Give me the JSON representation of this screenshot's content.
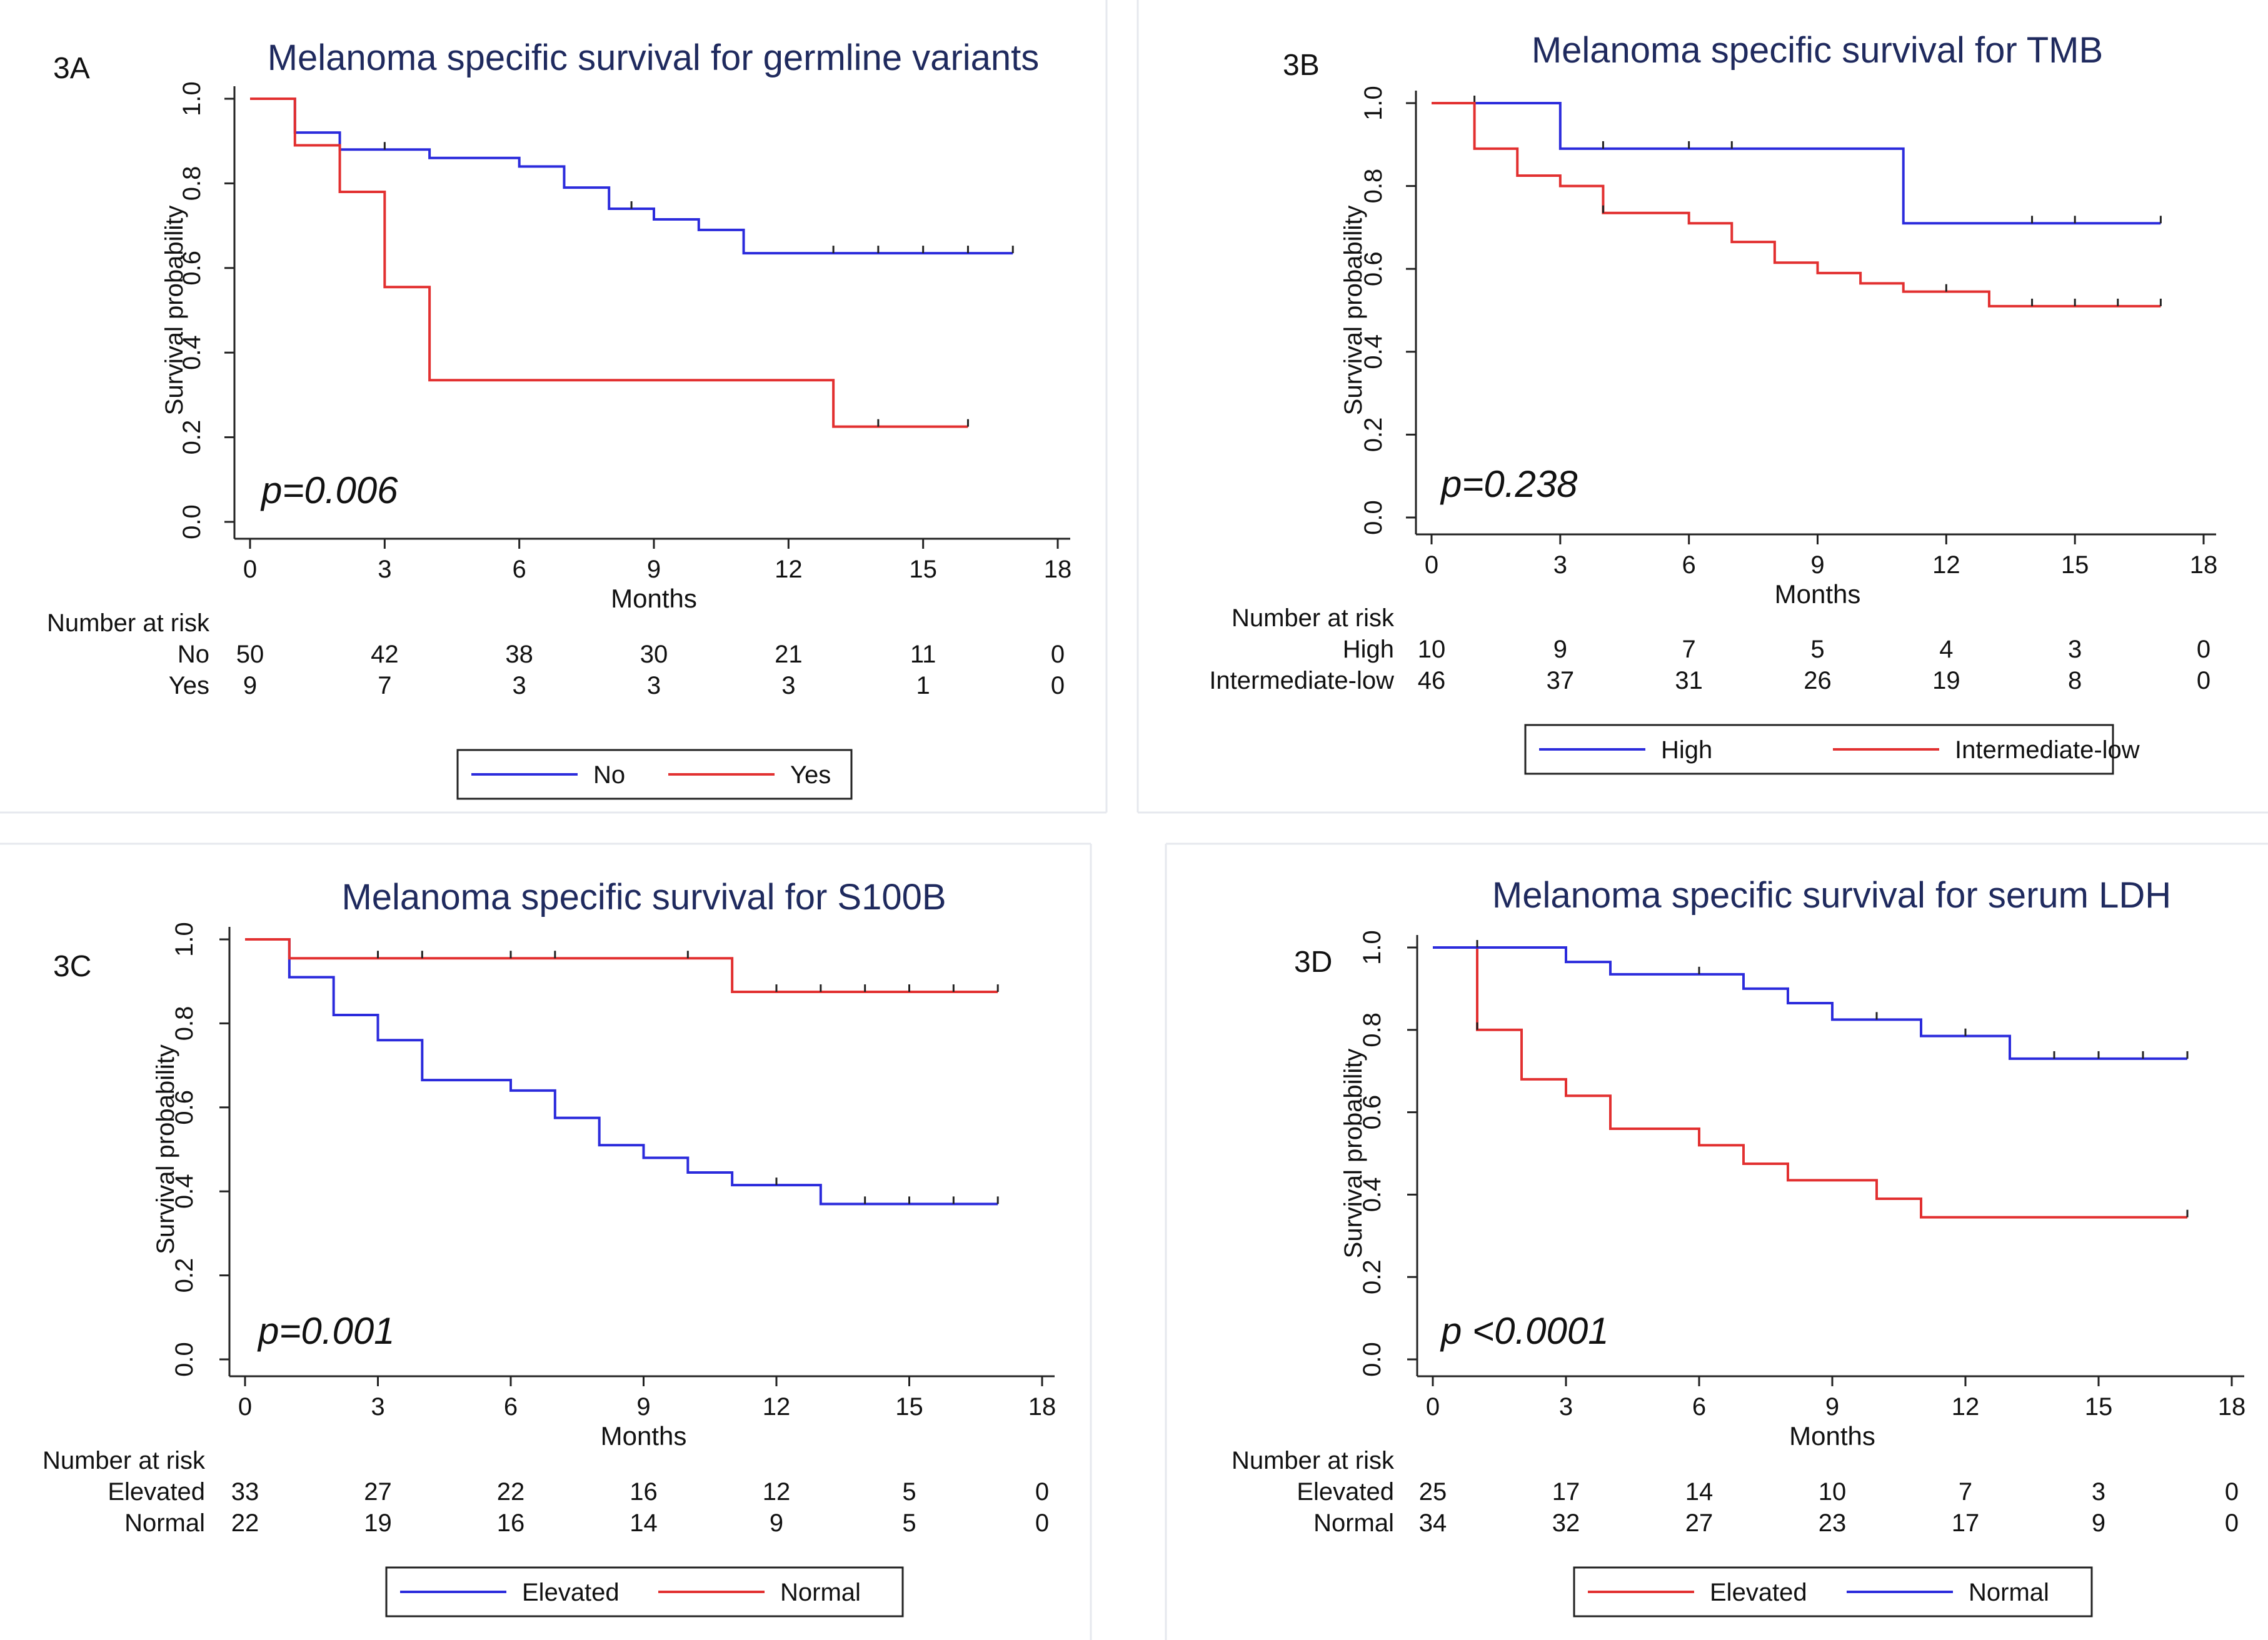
{
  "chart_data": [
    {
      "type": "line",
      "panel_label": "3A",
      "title": "Melanoma specific survival for germline variants",
      "xlabel": "Months",
      "ylabel": "Survival probability",
      "xlim": [
        0,
        18
      ],
      "ylim": [
        0,
        1
      ],
      "xticks": [
        "0",
        "3",
        "6",
        "9",
        "12",
        "15",
        "18"
      ],
      "yticks": [
        "0.0",
        "0.2",
        "0.4",
        "0.6",
        "0.8",
        "1.0"
      ],
      "p_value": "p=0.006",
      "risk_table_title": "Number at risk",
      "series": [
        {
          "name": "No",
          "color": "#2b2bdc",
          "steps": [
            [
              0,
              1.0
            ],
            [
              1,
              0.92
            ],
            [
              2,
              0.88
            ],
            [
              4,
              0.86
            ],
            [
              6,
              0.84
            ],
            [
              7,
              0.79
            ],
            [
              8,
              0.74
            ],
            [
              9,
              0.715
            ],
            [
              10,
              0.69
            ],
            [
              11,
              0.635
            ],
            [
              17,
              0.635
            ]
          ],
          "censor": [
            3,
            8.5,
            13,
            14,
            15,
            16,
            17
          ],
          "at_risk": [
            "50",
            "42",
            "38",
            "30",
            "21",
            "11",
            "0"
          ]
        },
        {
          "name": "Yes",
          "color": "#e23030",
          "steps": [
            [
              0,
              1.0
            ],
            [
              1,
              0.89
            ],
            [
              2,
              0.78
            ],
            [
              3,
              0.555
            ],
            [
              4,
              0.335
            ],
            [
              13,
              0.225
            ],
            [
              16,
              0.225
            ]
          ],
          "censor": [
            14,
            16
          ],
          "at_risk": [
            "9",
            "7",
            "3",
            "3",
            "3",
            "1",
            "0"
          ]
        }
      ],
      "legend": [
        "No",
        "Yes"
      ]
    },
    {
      "type": "line",
      "panel_label": "3B",
      "title": "Melanoma specific survival for TMB",
      "xlabel": "Months",
      "ylabel": "Survival probability",
      "xlim": [
        0,
        18
      ],
      "ylim": [
        0,
        1
      ],
      "xticks": [
        "0",
        "3",
        "6",
        "9",
        "12",
        "15",
        "18"
      ],
      "yticks": [
        "0.0",
        "0.2",
        "0.4",
        "0.6",
        "0.8",
        "1.0"
      ],
      "p_value": "p=0.238",
      "risk_table_title": "Number at risk",
      "series": [
        {
          "name": "High",
          "color": "#2b2bdc",
          "steps": [
            [
              0,
              1.0
            ],
            [
              3,
              0.89
            ],
            [
              11,
              0.71
            ],
            [
              17,
              0.71
            ]
          ],
          "censor": [
            1,
            4,
            6,
            7,
            14,
            15,
            17
          ],
          "at_risk": [
            "10",
            "9",
            "7",
            "5",
            "4",
            "3",
            "0"
          ]
        },
        {
          "name": "Intermediate-low",
          "color": "#e23030",
          "steps": [
            [
              0,
              1.0
            ],
            [
              1,
              0.89
            ],
            [
              2,
              0.825
            ],
            [
              3,
              0.8
            ],
            [
              4,
              0.735
            ],
            [
              6,
              0.71
            ],
            [
              7,
              0.665
            ],
            [
              8,
              0.615
            ],
            [
              9,
              0.59
            ],
            [
              10,
              0.565
            ],
            [
              11,
              0.545
            ],
            [
              13,
              0.51
            ],
            [
              17,
              0.51
            ]
          ],
          "censor": [
            4,
            12,
            14,
            15,
            16,
            17
          ],
          "at_risk": [
            "46",
            "37",
            "31",
            "26",
            "19",
            "8",
            "0"
          ]
        }
      ],
      "legend": [
        "High",
        "Intermediate-low"
      ]
    },
    {
      "type": "line",
      "panel_label": "3C",
      "title": "Melanoma specific survival for S100B",
      "xlabel": "Months",
      "ylabel": "Survival probability",
      "xlim": [
        0,
        18
      ],
      "ylim": [
        0,
        1
      ],
      "xticks": [
        "0",
        "3",
        "6",
        "9",
        "12",
        "15",
        "18"
      ],
      "yticks": [
        "0.0",
        "0.2",
        "0.4",
        "0.6",
        "0.8",
        "1.0"
      ],
      "p_value": "p=0.001",
      "risk_table_title": "Number at risk",
      "series": [
        {
          "name": "Elevated",
          "color": "#2b2bdc",
          "steps": [
            [
              0,
              1.0
            ],
            [
              1,
              0.91
            ],
            [
              2,
              0.82
            ],
            [
              3,
              0.76
            ],
            [
              4,
              0.665
            ],
            [
              6,
              0.64
            ],
            [
              7,
              0.575
            ],
            [
              8,
              0.51
            ],
            [
              9,
              0.48
            ],
            [
              10,
              0.445
            ],
            [
              11,
              0.415
            ],
            [
              13,
              0.37
            ],
            [
              17,
              0.37
            ]
          ],
          "censor": [
            12,
            14,
            15,
            16,
            17
          ],
          "at_risk": [
            "33",
            "27",
            "22",
            "16",
            "12",
            "5",
            "0"
          ]
        },
        {
          "name": "Normal",
          "color": "#e23030",
          "steps": [
            [
              0,
              1.0
            ],
            [
              1,
              0.955
            ],
            [
              11,
              0.875
            ],
            [
              17,
              0.875
            ]
          ],
          "censor": [
            3,
            4,
            6,
            7,
            10,
            12,
            13,
            14,
            15,
            16,
            17
          ],
          "at_risk": [
            "22",
            "19",
            "16",
            "14",
            "9",
            "5",
            "0"
          ]
        }
      ],
      "legend": [
        "Elevated",
        "Normal"
      ]
    },
    {
      "type": "line",
      "panel_label": "3D",
      "title": "Melanoma specific survival for serum LDH",
      "xlabel": "Months",
      "ylabel": "Survival probability",
      "xlim": [
        0,
        18
      ],
      "ylim": [
        0,
        1
      ],
      "xticks": [
        "0",
        "3",
        "6",
        "9",
        "12",
        "15",
        "18"
      ],
      "yticks": [
        "0.0",
        "0.2",
        "0.4",
        "0.6",
        "0.8",
        "1.0"
      ],
      "p_value": "p <0.0001",
      "risk_table_title": "Number at risk",
      "series": [
        {
          "name": "Elevated",
          "color": "#e23030",
          "steps": [
            [
              0,
              1.0
            ],
            [
              1,
              0.8
            ],
            [
              2,
              0.68
            ],
            [
              3,
              0.64
            ],
            [
              4,
              0.56
            ],
            [
              6,
              0.52
            ],
            [
              7,
              0.475
            ],
            [
              8,
              0.435
            ],
            [
              10,
              0.39
            ],
            [
              11,
              0.345
            ],
            [
              17,
              0.345
            ]
          ],
          "censor": [
            1,
            17
          ],
          "at_risk": [
            "25",
            "17",
            "14",
            "10",
            "7",
            "3",
            "0"
          ]
        },
        {
          "name": "Normal",
          "color": "#2b2bdc",
          "steps": [
            [
              0,
              1.0
            ],
            [
              3,
              0.965
            ],
            [
              4,
              0.935
            ],
            [
              7,
              0.9
            ],
            [
              8,
              0.865
            ],
            [
              9,
              0.825
            ],
            [
              11,
              0.785
            ],
            [
              13,
              0.73
            ],
            [
              17,
              0.73
            ]
          ],
          "censor": [
            1,
            6,
            10,
            12,
            14,
            15,
            16,
            17
          ],
          "at_risk": [
            "34",
            "32",
            "27",
            "23",
            "17",
            "9",
            "0"
          ]
        }
      ],
      "legend": [
        "Elevated",
        "Normal"
      ]
    }
  ]
}
